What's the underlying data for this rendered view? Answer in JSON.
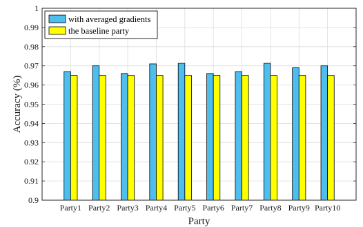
{
  "chart_data": {
    "type": "bar",
    "title": "",
    "xlabel": "Party",
    "ylabel": "Accuracy (%)",
    "categories": [
      "Party1",
      "Party2",
      "Party3",
      "Party4",
      "Party5",
      "Party6",
      "Party7",
      "Party8",
      "Party9",
      "Party10"
    ],
    "series": [
      {
        "name": "with averaged gradients",
        "color": "#4DBEEE",
        "values": [
          0.967,
          0.97,
          0.966,
          0.971,
          0.9713,
          0.966,
          0.967,
          0.9713,
          0.969,
          0.97
        ]
      },
      {
        "name": "the baseline party",
        "color": "#FFFF00",
        "values": [
          0.965,
          0.965,
          0.965,
          0.965,
          0.965,
          0.965,
          0.965,
          0.965,
          0.965,
          0.965
        ]
      }
    ],
    "ylim": [
      0.9,
      1
    ],
    "yticks": [
      "0.9",
      "0.91",
      "0.92",
      "0.93",
      "0.94",
      "0.95",
      "0.96",
      "0.97",
      "0.98",
      "0.99",
      "1"
    ],
    "grid": true,
    "legend_position": "top-left"
  }
}
